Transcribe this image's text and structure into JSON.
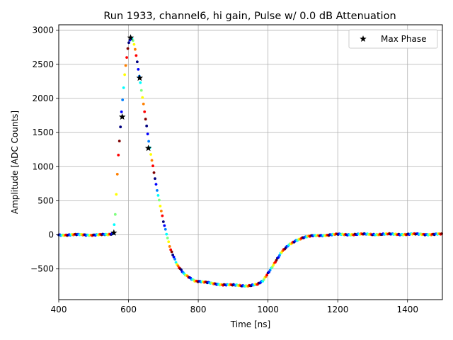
{
  "chart_data": {
    "type": "scatter",
    "title": "Run 1933, channel6, hi gain, Pulse w/ 0.0 dB Attenuation",
    "xlabel": "Time [ns]",
    "ylabel": "Amplitude [ADC Counts]",
    "xlim": [
      400,
      1500
    ],
    "ylim": [
      -950,
      3080
    ],
    "xticks": [
      400,
      600,
      800,
      1000,
      1200,
      1400
    ],
    "yticks": [
      -500,
      0,
      500,
      1000,
      1500,
      2000,
      2500,
      3000
    ],
    "grid": true,
    "legend": {
      "placement": "top-right",
      "entries": [
        "Max Phase"
      ]
    },
    "pulse_shape": {
      "x": [
        400,
        540,
        556,
        562,
        570,
        580,
        590,
        600,
        606,
        612,
        620,
        632,
        645,
        660,
        680,
        700,
        720,
        740,
        760,
        790,
        820,
        860,
        900,
        940,
        970,
        985,
        1000,
        1020,
        1040,
        1060,
        1080,
        1100,
        1130,
        1160,
        1200,
        1300,
        1500
      ],
      "y": [
        0,
        0,
        20,
        300,
        1100,
        1800,
        2400,
        2800,
        2880,
        2870,
        2700,
        2300,
        1850,
        1300,
        700,
        200,
        -200,
        -450,
        -580,
        -670,
        -700,
        -725,
        -740,
        -745,
        -730,
        -680,
        -560,
        -400,
        -250,
        -150,
        -80,
        -40,
        -15,
        -5,
        5,
        8,
        8
      ]
    },
    "series": [
      {
        "name": "Max Phase",
        "marker": "star",
        "color": "#000000",
        "x": [
          558,
          582,
          606,
          632,
          657
        ],
        "y": [
          30,
          1730,
          2890,
          2300,
          1270
        ]
      }
    ],
    "colormap": [
      "#00007f",
      "#0000ff",
      "#007fff",
      "#00ffff",
      "#7fff7f",
      "#ffff00",
      "#ff7f00",
      "#ff0000",
      "#7f0000"
    ]
  }
}
